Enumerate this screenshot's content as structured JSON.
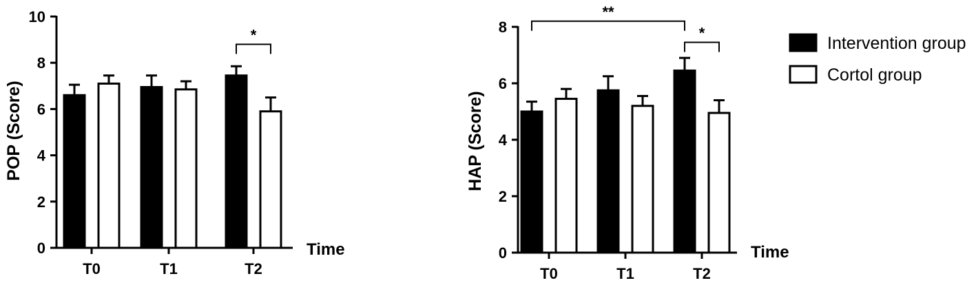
{
  "legend": [
    {
      "label": "Intervention group",
      "color": "#000000"
    },
    {
      "label": "Cortol group",
      "color": "#ffffff"
    }
  ],
  "chart_data": [
    {
      "type": "bar",
      "ylabel": "POP (Score)",
      "xlabel": "Time",
      "categories": [
        "T0",
        "T1",
        "T2"
      ],
      "ylim": [
        0,
        10
      ],
      "yticks": [
        0,
        2,
        4,
        6,
        8,
        10
      ],
      "series": [
        {
          "name": "Intervention group",
          "values": [
            6.6,
            6.95,
            7.45
          ],
          "errors": [
            0.45,
            0.5,
            0.4
          ]
        },
        {
          "name": "Cortol group",
          "values": [
            7.1,
            6.85,
            5.9
          ],
          "errors": [
            0.35,
            0.35,
            0.6
          ]
        }
      ],
      "annotations": [
        {
          "label": "*",
          "from": {
            "category": "T2",
            "series": 0
          },
          "to": {
            "category": "T2",
            "series": 1
          },
          "level": 8.8
        }
      ]
    },
    {
      "type": "bar",
      "ylabel": "HAP (Score)",
      "xlabel": "Time",
      "categories": [
        "T0",
        "T1",
        "T2"
      ],
      "ylim": [
        0,
        8
      ],
      "yticks": [
        0,
        2,
        4,
        6,
        8
      ],
      "series": [
        {
          "name": "Intervention group",
          "values": [
            5.0,
            5.75,
            6.45
          ],
          "errors": [
            0.35,
            0.5,
            0.45
          ]
        },
        {
          "name": "Cortol group",
          "values": [
            5.45,
            5.2,
            4.95
          ],
          "errors": [
            0.35,
            0.35,
            0.45
          ]
        }
      ],
      "annotations": [
        {
          "label": "**",
          "from": {
            "category": "T0",
            "series": 0
          },
          "to": {
            "category": "T2",
            "series": 0
          },
          "level": 8.2
        },
        {
          "label": "*",
          "from": {
            "category": "T2",
            "series": 0
          },
          "to": {
            "category": "T2",
            "series": 1
          },
          "level": 7.45
        }
      ]
    }
  ]
}
